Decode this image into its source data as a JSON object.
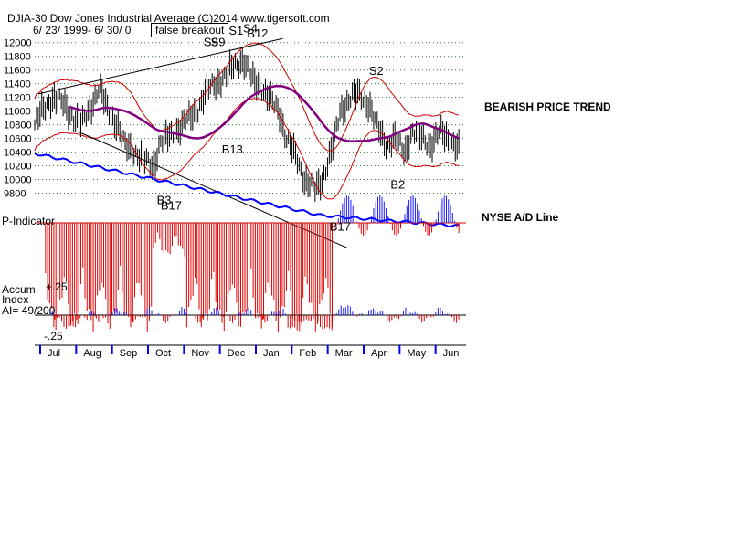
{
  "chart_data": {
    "type": "line",
    "title": "DJIA-30  Dow Jones Industrial Average   (C)2014 www.tigersoft.com",
    "subtitle": "6/ 23/ 1999- 6/ 30/ 0",
    "box_label": "false breakout",
    "price_axis": {
      "ticks": [
        12000,
        11800,
        11600,
        11400,
        11200,
        11000,
        10800,
        10600,
        10400,
        10200,
        10000,
        9800
      ],
      "ylim": [
        9700,
        12050
      ]
    },
    "months": [
      "Jul",
      "Aug",
      "Sep",
      "Oct",
      "Nov",
      "Dec",
      "Jan",
      "Feb",
      "Mar",
      "Apr",
      "May",
      "Jun"
    ],
    "price_close": {
      "x_month_index": [
        0.0,
        0.2,
        0.5,
        0.8,
        1.0,
        1.3,
        1.5,
        1.8,
        2.0,
        2.3,
        2.5,
        2.8,
        3.0,
        3.3,
        3.5,
        3.8,
        4.0,
        4.3,
        4.5,
        4.8,
        5.0,
        5.3,
        5.5,
        5.8,
        6.0,
        6.3,
        6.5,
        6.8,
        7.0,
        7.3,
        7.5,
        7.8,
        8.0,
        8.3,
        8.5,
        8.8,
        9.0,
        9.3,
        9.5,
        9.8,
        10.0,
        10.3,
        10.5,
        10.8,
        11.0,
        11.3,
        11.5,
        11.8
      ],
      "values": [
        10800,
        11000,
        11200,
        11100,
        10950,
        10800,
        11000,
        11350,
        11050,
        10800,
        10500,
        10400,
        10300,
        10200,
        10550,
        10650,
        10750,
        10900,
        11000,
        11300,
        11400,
        11500,
        11650,
        11750,
        11500,
        11350,
        11200,
        11000,
        10600,
        10300,
        10000,
        9850,
        10000,
        10500,
        11000,
        11200,
        11250,
        11100,
        10800,
        10500,
        10600,
        10400,
        10700,
        10600,
        10500,
        10700,
        10600,
        10450
      ]
    },
    "annotations": [
      {
        "text": "S9",
        "month_index": 4.9,
        "price": 11950
      },
      {
        "text": "S9",
        "month_index": 5.1,
        "price": 11950
      },
      {
        "text": "S1",
        "month_index": 5.6,
        "price": 12120
      },
      {
        "text": "S4",
        "month_index": 6.0,
        "price": 12150
      },
      {
        "text": "B12",
        "month_index": 6.2,
        "price": 12080
      },
      {
        "text": "B13",
        "month_index": 5.5,
        "price": 10380
      },
      {
        "text": "S2",
        "month_index": 9.5,
        "price": 11530
      },
      {
        "text": "B2",
        "month_index": 10.1,
        "price": 9870
      },
      {
        "text": "B3",
        "month_index": 3.6,
        "price": 9640
      },
      {
        "text": "B17",
        "month_index": 3.8,
        "price": 9560
      },
      {
        "text": "B17",
        "month_index": 8.5,
        "price": 9250
      }
    ],
    "side_labels": {
      "bearish": "BEARISH PRICE TREND",
      "nyse": "NYSE A/D Line"
    },
    "indicator_labels": {
      "p_indicator": "P-Indicator",
      "accum": "Accum",
      "index": "Index",
      "ai": "AI= 49/200",
      "plus25": "+.25",
      "minus25": "-.25"
    },
    "colors": {
      "price": "#000000",
      "ma_long": "#800080",
      "bands": "#d00000",
      "ad_line": "#0000ff",
      "pos_bars": "#1a1aff",
      "neg_bars": "#e00000",
      "grid": "#2e7d32"
    }
  }
}
